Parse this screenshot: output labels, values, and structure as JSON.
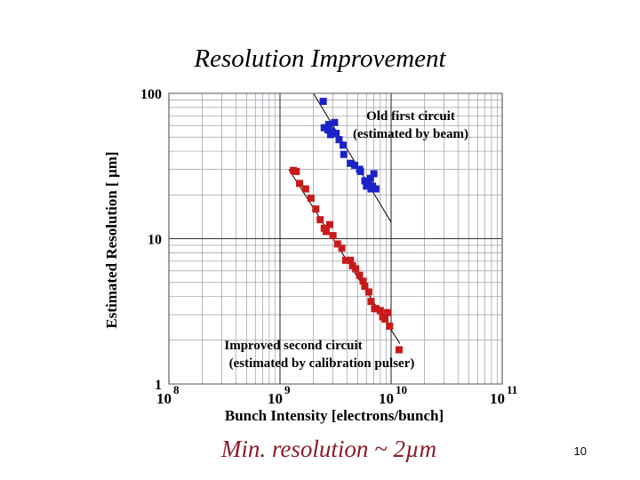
{
  "slide": {
    "title": "Resolution Improvement",
    "footer_note": "Min. resolution ~ 2µm",
    "page_number": "10"
  },
  "chart_data": {
    "type": "scatter",
    "title": "Resolution Improvement",
    "xlabel": "Bunch Intensity [electrons/bunch]",
    "ylabel": "Estimated Resolution [ µm]",
    "xscale": "log",
    "yscale": "log",
    "xlim": [
      100000000.0,
      100000000000.0
    ],
    "ylim": [
      1,
      100
    ],
    "grid": true,
    "x_ticks": [
      {
        "value": 100000000.0,
        "base": "10",
        "exp": "8"
      },
      {
        "value": 1000000000.0,
        "base": "10",
        "exp": "9"
      },
      {
        "value": 10000000000.0,
        "base": "10",
        "exp": "10"
      },
      {
        "value": 100000000000.0,
        "base": "10",
        "exp": "11"
      }
    ],
    "y_ticks": [
      {
        "value": 1,
        "label": "1"
      },
      {
        "value": 10,
        "label": "10"
      },
      {
        "value": 100,
        "label": "100"
      }
    ],
    "series": [
      {
        "name": "Old first circuit (estimated by beam)",
        "label_lines": [
          "Old first circuit",
          "(estimated by beam)"
        ],
        "color": "#1a22c8",
        "points": [
          [
            2450000000.0,
            88
          ],
          [
            2500000000.0,
            58
          ],
          [
            2700000000.0,
            56
          ],
          [
            2750000000.0,
            61
          ],
          [
            2850000000.0,
            52
          ],
          [
            2900000000.0,
            55
          ],
          [
            3100000000.0,
            63
          ],
          [
            3200000000.0,
            53
          ],
          [
            3400000000.0,
            48
          ],
          [
            3700000000.0,
            44
          ],
          [
            3750000000.0,
            38
          ],
          [
            4300000000.0,
            33
          ],
          [
            4700000000.0,
            32
          ],
          [
            5200000000.0,
            30
          ],
          [
            5300000000.0,
            29
          ],
          [
            5800000000.0,
            25
          ],
          [
            6000000000.0,
            23
          ],
          [
            6300000000.0,
            24
          ],
          [
            6500000000.0,
            26
          ],
          [
            6600000000.0,
            22
          ],
          [
            6800000000.0,
            23
          ],
          [
            7000000000.0,
            28
          ],
          [
            7300000000.0,
            22
          ]
        ],
        "trend": [
          [
            2000000000.0,
            100
          ],
          [
            10000000000.0,
            13
          ]
        ]
      },
      {
        "name": "Improved second circuit (estimated by calibration pulser)",
        "label_lines": [
          "Improved second circuit",
          "(estimated by calibration pulser)"
        ],
        "color": "#c81a1a",
        "points": [
          [
            1320000000.0,
            29.5
          ],
          [
            1400000000.0,
            29
          ],
          [
            1500000000.0,
            24
          ],
          [
            1700000000.0,
            22
          ],
          [
            1900000000.0,
            19
          ],
          [
            2100000000.0,
            16
          ],
          [
            2300000000.0,
            13.5
          ],
          [
            2500000000.0,
            11.8
          ],
          [
            2600000000.0,
            11.2
          ],
          [
            2800000000.0,
            12.5
          ],
          [
            3000000000.0,
            10.5
          ],
          [
            3300000000.0,
            9.2
          ],
          [
            3600000000.0,
            8.6
          ],
          [
            3900000000.0,
            7.1
          ],
          [
            4300000000.0,
            7.1
          ],
          [
            4500000000.0,
            6.5
          ],
          [
            4800000000.0,
            6.2
          ],
          [
            5200000000.0,
            5.6
          ],
          [
            5600000000.0,
            5.1
          ],
          [
            5800000000.0,
            4.7
          ],
          [
            6300000000.0,
            4.3
          ],
          [
            6600000000.0,
            3.7
          ],
          [
            7100000000.0,
            3.3
          ],
          [
            7300000000.0,
            3.3
          ],
          [
            8000000000.0,
            3.2
          ],
          [
            8400000000.0,
            2.9
          ],
          [
            8800000000.0,
            2.8
          ],
          [
            9300000000.0,
            3.1
          ],
          [
            9700000000.0,
            2.5
          ],
          [
            11800000000.0,
            1.72
          ]
        ],
        "trend": [
          [
            1200000000.0,
            30
          ],
          [
            12000000000.0,
            1.9
          ]
        ]
      }
    ]
  }
}
